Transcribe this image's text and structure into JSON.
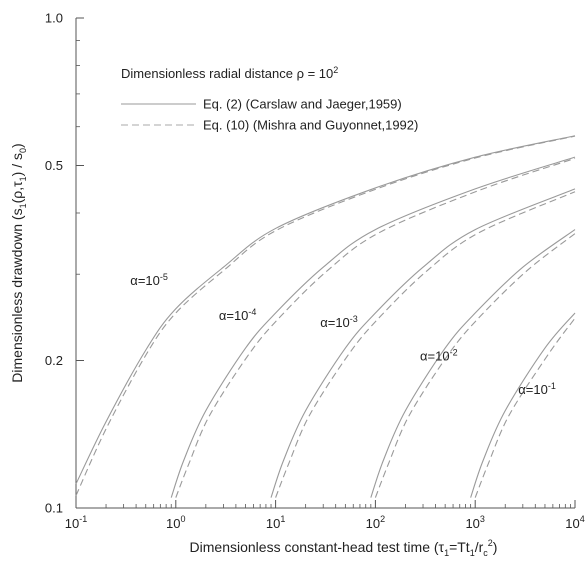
{
  "chart_data": {
    "type": "line",
    "x_scale": "log",
    "y_scale": "log",
    "xlim": [
      0.1,
      10000
    ],
    "ylim": [
      0.1,
      1.0
    ],
    "xlabel_parts": [
      "Dimensionless constant-head test time (",
      "τ",
      "1",
      "=Tt",
      "1",
      "/r",
      "c",
      "2",
      ")"
    ],
    "ylabel_parts": [
      "Dimensionless drawdown (s",
      "1",
      "(ρ,τ",
      "1",
      ") / s",
      "0",
      ")"
    ],
    "x_ticks": [
      {
        "base": "10",
        "exp": "-1",
        "value": 0.1
      },
      {
        "base": "10",
        "exp": "0",
        "value": 1
      },
      {
        "base": "10",
        "exp": "1",
        "value": 10
      },
      {
        "base": "10",
        "exp": "2",
        "value": 100
      },
      {
        "base": "10",
        "exp": "3",
        "value": 1000
      },
      {
        "base": "10",
        "exp": "4",
        "value": 10000
      }
    ],
    "y_ticks": [
      {
        "label": "0.1",
        "value": 0.1
      },
      {
        "label": "0.2",
        "value": 0.2
      },
      {
        "label": "0.5",
        "value": 0.5
      },
      {
        "label": "1.0",
        "value": 1.0
      }
    ],
    "legend": {
      "heading_main": "Dimensionless radial distance ρ = 10",
      "heading_sup": "2",
      "entries": [
        {
          "label": "Eq. (2) (Carslaw and Jaeger,1959)",
          "style": "solid"
        },
        {
          "label": "Eq. (10) (Mishra and Guyonnet,1992)",
          "style": "dashed"
        }
      ],
      "placement": "top-left"
    },
    "colors": {
      "solid": "#9a9a9a",
      "dashed": "#a8a8a8",
      "axis": "#555555"
    },
    "series": [
      {
        "alpha_base": "α=10",
        "alpha_exp": "-5",
        "label_at": [
          0.35,
          0.285
        ],
        "solid": [
          [
            0.1,
            0.112
          ],
          [
            0.2,
            0.15
          ],
          [
            0.5,
            0.21
          ],
          [
            1,
            0.255
          ],
          [
            3,
            0.31
          ],
          [
            10,
            0.372
          ],
          [
            100,
            0.45
          ],
          [
            1000,
            0.52
          ],
          [
            10000,
            0.575
          ]
        ],
        "dashed": [
          [
            0.1,
            0.106
          ],
          [
            0.2,
            0.145
          ],
          [
            0.5,
            0.205
          ],
          [
            1,
            0.25
          ],
          [
            3,
            0.305
          ],
          [
            10,
            0.368
          ],
          [
            100,
            0.447
          ],
          [
            1000,
            0.518
          ],
          [
            10000,
            0.574
          ]
        ]
      },
      {
        "alpha_base": "α=10",
        "alpha_exp": "-4",
        "label_at": [
          2.7,
          0.242
        ],
        "solid": [
          [
            0.9,
            0.105
          ],
          [
            1.2,
            0.125
          ],
          [
            2,
            0.158
          ],
          [
            5,
            0.212
          ],
          [
            10,
            0.25
          ],
          [
            30,
            0.31
          ],
          [
            100,
            0.37
          ],
          [
            1000,
            0.448
          ],
          [
            10000,
            0.52
          ]
        ],
        "dashed": [
          [
            1.0,
            0.105
          ],
          [
            1.35,
            0.123
          ],
          [
            2.2,
            0.155
          ],
          [
            5.5,
            0.207
          ],
          [
            11,
            0.245
          ],
          [
            33,
            0.305
          ],
          [
            110,
            0.365
          ],
          [
            1100,
            0.445
          ],
          [
            10000,
            0.517
          ]
        ]
      },
      {
        "alpha_base": "α=10",
        "alpha_exp": "-3",
        "label_at": [
          28,
          0.234
        ],
        "solid": [
          [
            9,
            0.105
          ],
          [
            12,
            0.125
          ],
          [
            20,
            0.158
          ],
          [
            50,
            0.212
          ],
          [
            100,
            0.25
          ],
          [
            300,
            0.31
          ],
          [
            1000,
            0.37
          ],
          [
            10000,
            0.448
          ]
        ],
        "dashed": [
          [
            10,
            0.105
          ],
          [
            13.5,
            0.123
          ],
          [
            22,
            0.155
          ],
          [
            55,
            0.207
          ],
          [
            110,
            0.245
          ],
          [
            330,
            0.305
          ],
          [
            1100,
            0.365
          ],
          [
            10000,
            0.442
          ]
        ]
      },
      {
        "alpha_base": "α=10",
        "alpha_exp": "-2",
        "label_at": [
          280,
          0.2
        ],
        "solid": [
          [
            90,
            0.105
          ],
          [
            120,
            0.125
          ],
          [
            200,
            0.158
          ],
          [
            500,
            0.212
          ],
          [
            1000,
            0.25
          ],
          [
            3000,
            0.31
          ],
          [
            10000,
            0.37
          ]
        ],
        "dashed": [
          [
            100,
            0.105
          ],
          [
            135,
            0.123
          ],
          [
            220,
            0.155
          ],
          [
            550,
            0.207
          ],
          [
            1100,
            0.245
          ],
          [
            3300,
            0.305
          ],
          [
            10000,
            0.363
          ]
        ]
      },
      {
        "alpha_base": "α=10",
        "alpha_exp": "-1",
        "label_at": [
          2700,
          0.171
        ],
        "solid": [
          [
            900,
            0.105
          ],
          [
            1200,
            0.125
          ],
          [
            2000,
            0.158
          ],
          [
            5000,
            0.212
          ],
          [
            10000,
            0.25
          ]
        ],
        "dashed": [
          [
            1000,
            0.105
          ],
          [
            1350,
            0.123
          ],
          [
            2200,
            0.155
          ],
          [
            5500,
            0.207
          ],
          [
            10000,
            0.244
          ]
        ]
      }
    ]
  }
}
